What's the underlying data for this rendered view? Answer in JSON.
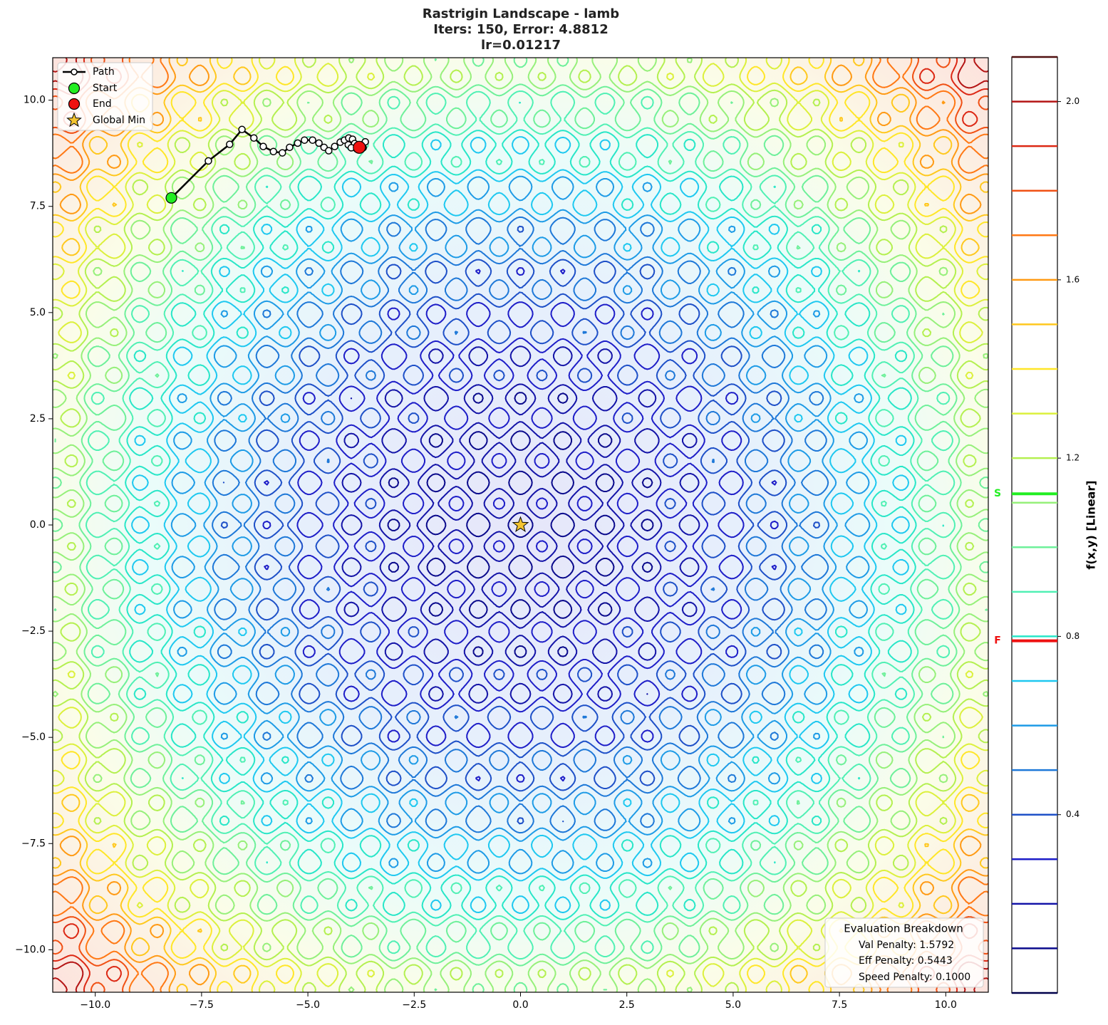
{
  "chart_data": {
    "type": "contour",
    "title": [
      "Rastrigin Landscape - lamb",
      "Iters: 150, Error: 4.8812",
      "lr=0.01217"
    ],
    "xlim": [
      -11,
      11
    ],
    "ylim": [
      -11,
      11
    ],
    "xticks": [
      {
        "value": -10,
        "label": "−10.0"
      },
      {
        "value": -7.5,
        "label": "−7.5"
      },
      {
        "value": -5,
        "label": "−5.0"
      },
      {
        "value": -2.5,
        "label": "−2.5"
      },
      {
        "value": 0,
        "label": "0.0"
      },
      {
        "value": 2.5,
        "label": "2.5"
      },
      {
        "value": 5,
        "label": "5.0"
      },
      {
        "value": 7.5,
        "label": "7.5"
      },
      {
        "value": 10,
        "label": "10.0"
      }
    ],
    "yticks": [
      {
        "value": -10,
        "label": "−10.0"
      },
      {
        "value": -7.5,
        "label": "−7.5"
      },
      {
        "value": -5,
        "label": "−5.0"
      },
      {
        "value": -2.5,
        "label": "−2.5"
      },
      {
        "value": 0,
        "label": "0.0"
      },
      {
        "value": 2.5,
        "label": "2.5"
      },
      {
        "value": 5,
        "label": "5.0"
      },
      {
        "value": 7.5,
        "label": "7.5"
      },
      {
        "value": 10,
        "label": "10.0"
      }
    ],
    "clim": [
      0,
      2.1
    ],
    "contour_levels": [
      0,
      0.1,
      0.2,
      0.3,
      0.4,
      0.5,
      0.6,
      0.7,
      0.8,
      0.9,
      1.0,
      1.1,
      1.2,
      1.3,
      1.4,
      1.5,
      1.6,
      1.7,
      1.8,
      1.9,
      2.0,
      2.1
    ],
    "contour_colors": [
      "#00004a",
      "#0a0a8c",
      "#1414a8",
      "#1e1ec8",
      "#1e50c8",
      "#1e78d8",
      "#1e9be6",
      "#1ec8f0",
      "#28e6c8",
      "#50f0b4",
      "#6ef09a",
      "#96f07a",
      "#b4f050",
      "#dcf03c",
      "#ffe628",
      "#ffc81e",
      "#ff9a14",
      "#ff7814",
      "#f05014",
      "#dc2814",
      "#b41414",
      "#501010"
    ],
    "colorbar_label": "f(x,y) [Linear]",
    "colorbar_ticks": [
      0.4,
      0.8,
      1.2,
      1.6,
      {
        "value": 2,
        "label": "2.0"
      }
    ],
    "colorbar_markers": [
      {
        "label": "S",
        "value": 1.12,
        "color": "#22ee22"
      },
      {
        "label": "F",
        "value": 0.79,
        "color": "#ee1111"
      }
    ],
    "path": {
      "name": "Path",
      "color": "#000000",
      "x": [
        -8.21,
        -7.34,
        -6.84,
        -6.55,
        -6.27,
        -6.05,
        -5.81,
        -5.6,
        -5.43,
        -5.24,
        -5.08,
        -4.89,
        -4.74,
        -4.62,
        -4.51,
        -4.37,
        -4.24,
        -4.14,
        -4.04,
        -3.95,
        -3.9,
        -4.05,
        -3.98,
        -3.85,
        -3.72,
        -3.65,
        -3.7,
        -3.8,
        -3.79
      ],
      "y": [
        7.7,
        8.57,
        8.96,
        9.31,
        9.11,
        8.91,
        8.79,
        8.76,
        8.89,
        8.99,
        9.06,
        9.06,
        8.99,
        8.89,
        8.81,
        8.91,
        9.01,
        9.06,
        9.11,
        9.08,
        8.98,
        8.95,
        8.88,
        8.85,
        8.95,
        9.02,
        8.88,
        8.92,
        8.89
      ]
    },
    "start": {
      "name": "Start",
      "color": "#22ee22"
    },
    "end": {
      "name": "End",
      "color": "#ee1111"
    },
    "global_min": {
      "name": "Global Min",
      "x": 0,
      "y": 0,
      "color": "#f4c430"
    },
    "breakdown": {
      "title": "Evaluation Breakdown",
      "lines": [
        "Val Penalty: 1.5792",
        "Eff Penalty: 0.5443",
        "Speed Penalty: 0.1000"
      ]
    }
  }
}
